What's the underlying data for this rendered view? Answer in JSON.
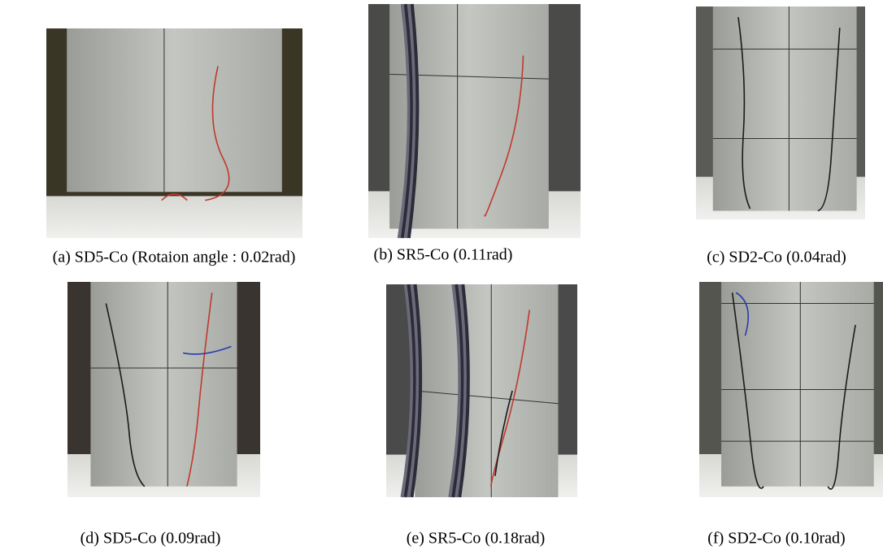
{
  "figure": {
    "panels": [
      {
        "caption": "(a)  SD5-Co (Rotaion angle : 0.02rad)"
      },
      {
        "caption": "(b)  SR5-Co (0.11rad)"
      },
      {
        "caption": "(c)  SD2-Co (0.04rad)"
      },
      {
        "caption": "(d)  SD5-Co (0.09rad)"
      },
      {
        "caption": "(e)  SR5-Co (0.18rad)"
      },
      {
        "caption": "(f)  SD2-Co (0.10rad)"
      }
    ]
  }
}
